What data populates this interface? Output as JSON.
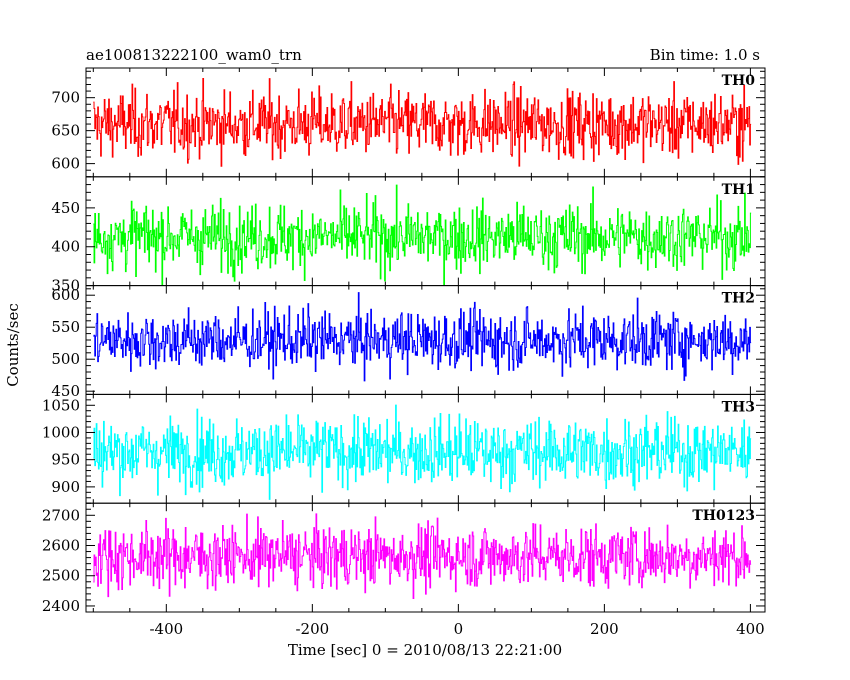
{
  "chart_data": {
    "type": "line",
    "title_left": "ae100813222100_wam0_trn",
    "title_right": "Bin time: 1.0 s",
    "xlabel": "Time [sec] 0 = 2010/08/13 22:21:00",
    "ylabel": "Counts/sec",
    "xlim": [
      -510,
      420
    ],
    "x_range": [
      -500,
      400
    ],
    "bin_time": 1.0,
    "xticks": [
      -400,
      -200,
      0,
      200,
      400
    ],
    "grid": false,
    "panels": [
      {
        "name": "TH0",
        "color": "#ff0000",
        "ylim": [
          580,
          745
        ],
        "yticks": [
          600,
          650,
          700
        ],
        "mean": 660,
        "spread": 25
      },
      {
        "name": "TH1",
        "color": "#00ff00",
        "ylim": [
          350,
          490
        ],
        "yticks": [
          350,
          400,
          450
        ],
        "mean": 413,
        "spread": 21
      },
      {
        "name": "TH2",
        "color": "#0000ff",
        "ylim": [
          445,
          615
        ],
        "yticks": [
          450,
          500,
          550,
          600
        ],
        "mean": 530,
        "spread": 23
      },
      {
        "name": "TH3",
        "color": "#00ffff",
        "ylim": [
          870,
          1070
        ],
        "yticks": [
          900,
          950,
          1000,
          1050
        ],
        "mean": 965,
        "spread": 31
      },
      {
        "name": "TH0123",
        "color": "#ff00ff",
        "ylim": [
          2380,
          2740
        ],
        "yticks": [
          2400,
          2500,
          2600,
          2700
        ],
        "mean": 2565,
        "spread": 52
      }
    ]
  }
}
